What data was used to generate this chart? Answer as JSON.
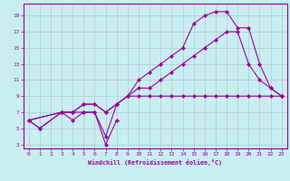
{
  "xlabel": "Windchill (Refroidissement éolien,°C)",
  "background_color": "#c8eef0",
  "grid_color": "#b0c8cc",
  "line_color": "#990099",
  "xlim": [
    -0.5,
    23.5
  ],
  "ylim": [
    2.5,
    20.5
  ],
  "xticks": [
    0,
    1,
    2,
    3,
    4,
    5,
    6,
    7,
    8,
    9,
    10,
    11,
    12,
    13,
    14,
    15,
    16,
    17,
    18,
    19,
    20,
    21,
    22,
    23
  ],
  "yticks": [
    3,
    5,
    7,
    9,
    11,
    13,
    15,
    17,
    19
  ],
  "line1_x": [
    0,
    1,
    3,
    4,
    5,
    6,
    7,
    8
  ],
  "line1_y": [
    6,
    5,
    7,
    6,
    7,
    7,
    3,
    6
  ],
  "line2_x": [
    0,
    1,
    3,
    4,
    5,
    6,
    7,
    8,
    9,
    10,
    11,
    12,
    13,
    14,
    15,
    16,
    17,
    18,
    19,
    20,
    21,
    22,
    23
  ],
  "line2_y": [
    6,
    5,
    7,
    7,
    7,
    7,
    4,
    8,
    9,
    9,
    9,
    9,
    9,
    9,
    9,
    9,
    9,
    9,
    9,
    9,
    9,
    9,
    9
  ],
  "line3_x": [
    0,
    3,
    4,
    5,
    6,
    7,
    8,
    9,
    10,
    11,
    12,
    13,
    14,
    15,
    16,
    17,
    18,
    19,
    20,
    21,
    22,
    23
  ],
  "line3_y": [
    6,
    7,
    7,
    8,
    8,
    7,
    8,
    9,
    10,
    10,
    11,
    12,
    13,
    14,
    15,
    16,
    17,
    17,
    13,
    11,
    10,
    9
  ],
  "line4_x": [
    0,
    3,
    4,
    5,
    6,
    7,
    8,
    9,
    10,
    11,
    12,
    13,
    14,
    15,
    16,
    17,
    18,
    19,
    20,
    21,
    22,
    23
  ],
  "line4_y": [
    6,
    7,
    7,
    8,
    8,
    7,
    8,
    9,
    11,
    12,
    13,
    14,
    15,
    18,
    19,
    19.5,
    19.5,
    17.5,
    17.5,
    13,
    10,
    9
  ]
}
